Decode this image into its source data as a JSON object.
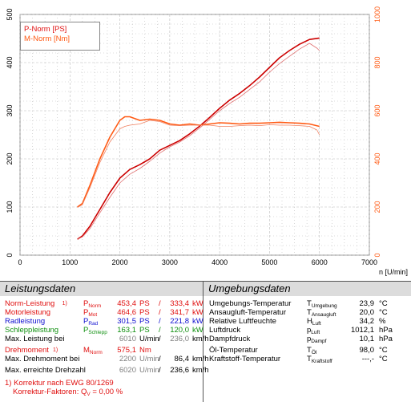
{
  "chart_data": {
    "type": "line",
    "xlabel": "n [U/min]",
    "x_ticks": [
      "0",
      "1000",
      "2000",
      "3000",
      "4000",
      "5000",
      "6000",
      "7000"
    ],
    "y_left_ticks": [
      "0",
      "100",
      "200",
      "300",
      "400",
      "500"
    ],
    "y_right_ticks": [
      "0",
      "200",
      "400",
      "600",
      "800",
      "1000"
    ],
    "xlim": [
      0,
      7000
    ],
    "ylim_left": [
      0,
      500
    ],
    "ylim_right": [
      0,
      1000
    ],
    "grid": true,
    "legend_position": "top-left",
    "legend": [
      "P-Norm [PS]",
      "M-Norm [Nm]"
    ],
    "colors": {
      "power": "#cc0000",
      "torque": "#ff5a14",
      "power_thin": "#e07070",
      "torque_thin": "#f08060"
    },
    "series": [
      {
        "name": "P-Norm [PS]",
        "axis": "left",
        "x": [
          1150,
          1250,
          1400,
          1600,
          1800,
          2000,
          2200,
          2400,
          2600,
          2800,
          3000,
          3200,
          3400,
          3600,
          3800,
          4000,
          4200,
          4400,
          4600,
          4800,
          5000,
          5200,
          5400,
          5600,
          5800,
          6000
        ],
        "values": [
          33,
          40,
          60,
          95,
          130,
          160,
          178,
          188,
          200,
          218,
          228,
          238,
          252,
          268,
          286,
          305,
          322,
          336,
          352,
          370,
          390,
          410,
          425,
          438,
          448,
          451
        ]
      },
      {
        "name": "P-Norm (uncorrected)",
        "axis": "left",
        "x": [
          1150,
          1250,
          1400,
          1600,
          1800,
          2000,
          2200,
          2400,
          2600,
          2800,
          3000,
          3200,
          3400,
          3600,
          3800,
          4000,
          4200,
          4400,
          4600,
          4800,
          5000,
          5200,
          5400,
          5600,
          5800,
          5950,
          6000
        ],
        "values": [
          33,
          38,
          55,
          88,
          120,
          150,
          168,
          180,
          195,
          212,
          225,
          235,
          248,
          264,
          282,
          300,
          315,
          328,
          344,
          360,
          380,
          398,
          413,
          428,
          440,
          430,
          425
        ]
      },
      {
        "name": "M-Norm [Nm]",
        "axis": "right",
        "x": [
          1150,
          1250,
          1400,
          1600,
          1800,
          2000,
          2100,
          2200,
          2400,
          2600,
          2800,
          3000,
          3200,
          3400,
          3600,
          3800,
          4000,
          4200,
          4400,
          4600,
          4800,
          5000,
          5200,
          5400,
          5600,
          5800,
          6000
        ],
        "values": [
          200,
          215,
          290,
          400,
          490,
          560,
          575,
          575,
          560,
          565,
          560,
          545,
          540,
          545,
          540,
          545,
          550,
          548,
          545,
          548,
          548,
          550,
          552,
          550,
          548,
          545,
          535
        ]
      },
      {
        "name": "M-Norm (uncorrected)",
        "axis": "right",
        "x": [
          1150,
          1250,
          1400,
          1600,
          1800,
          2000,
          2100,
          2200,
          2400,
          2600,
          2800,
          3000,
          3200,
          3400,
          3600,
          3800,
          4000,
          4200,
          4400,
          4600,
          4800,
          5000,
          5200,
          5400,
          5600,
          5800,
          5950,
          6000
        ],
        "values": [
          198,
          210,
          280,
          385,
          470,
          525,
          535,
          540,
          545,
          560,
          555,
          540,
          538,
          540,
          540,
          540,
          535,
          535,
          538,
          540,
          538,
          542,
          540,
          540,
          538,
          535,
          520,
          500
        ]
      }
    ]
  },
  "left_panel": {
    "title": "Leistungsdaten",
    "rows": [
      {
        "label": "Norm-Leistung",
        "mark": "1)",
        "sym": "P",
        "sub": "Norm",
        "v1": "453,4",
        "u1": "PS",
        "sep": "/",
        "v2": "333,4",
        "u2": "kW"
      },
      {
        "label": "Motorleistung",
        "mark": "",
        "sym": "P",
        "sub": "Mot",
        "v1": "464,6",
        "u1": "PS",
        "sep": "/",
        "v2": "341,7",
        "u2": "kW"
      },
      {
        "label": "Radleistung",
        "mark": "",
        "sym": "P",
        "sub": "Rad",
        "v1": "301,5",
        "u1": "PS",
        "sep": "/",
        "v2": "221,8",
        "u2": "kW"
      },
      {
        "label": "Schleppleistung",
        "mark": "",
        "sym": "P",
        "sub": "Schlepp",
        "v1": "163,1",
        "u1": "PS",
        "sep": "/",
        "v2": "120,0",
        "u2": "kW"
      },
      {
        "label": "Max. Leistung bei",
        "v1": "6010",
        "u1": "U/min",
        "sep": "/",
        "v2": "236,0",
        "u2": "km/h"
      }
    ],
    "torque": {
      "label": "Drehmoment",
      "mark": "1)",
      "sym": "M",
      "sub": "Norm",
      "v1": "575,1",
      "u1": "Nm"
    },
    "torque_at": {
      "label": "Max. Drehmoment bei",
      "v1": "2200",
      "u1": "U/min",
      "sep": "/",
      "v2": "86,4",
      "u2": "km/h"
    },
    "max_rpm": {
      "label": "Max. erreichte Drehzahl",
      "v1": "6020",
      "u1": "U/min",
      "sep": "/",
      "v2": "236,6",
      "u2": "km/h"
    },
    "footnote1": "1) Korrektur nach EWG 80/1269",
    "footnote2_label": "Korrektur-Faktoren: Q",
    "footnote2_sub": "V",
    "footnote2_val": "=   0,00 %"
  },
  "right_panel": {
    "title": "Umgebungsdaten",
    "rows": [
      {
        "label": "Umgebungs-Temperatur",
        "sym": "T",
        "sub": "Umgebung",
        "val": "23,9",
        "unit": "°C"
      },
      {
        "label": "Ansaugluft-Temperatur",
        "sym": "T",
        "sub": "Ansaugluft",
        "val": "20,0",
        "unit": "°C"
      },
      {
        "label": "Relative Luftfeuchte",
        "sym": "H",
        "sub": "Luft",
        "val": "34,2",
        "unit": "%"
      },
      {
        "label": "Luftdruck",
        "sym": "p",
        "sub": "Luft",
        "val": "1012,1",
        "unit": "hPa"
      },
      {
        "label": "Dampfdruck",
        "sym": "p",
        "sub": "Dampf",
        "val": "10,1",
        "unit": "hPa"
      },
      {
        "label": "Öl-Temperatur",
        "sym": "T",
        "sub": "Öl",
        "val": "98,0",
        "unit": "°C"
      },
      {
        "label": "Kraftstoff-Temperatur",
        "sym": "T",
        "sub": "Kraftstoff",
        "val": "---,-",
        "unit": "°C"
      }
    ]
  }
}
